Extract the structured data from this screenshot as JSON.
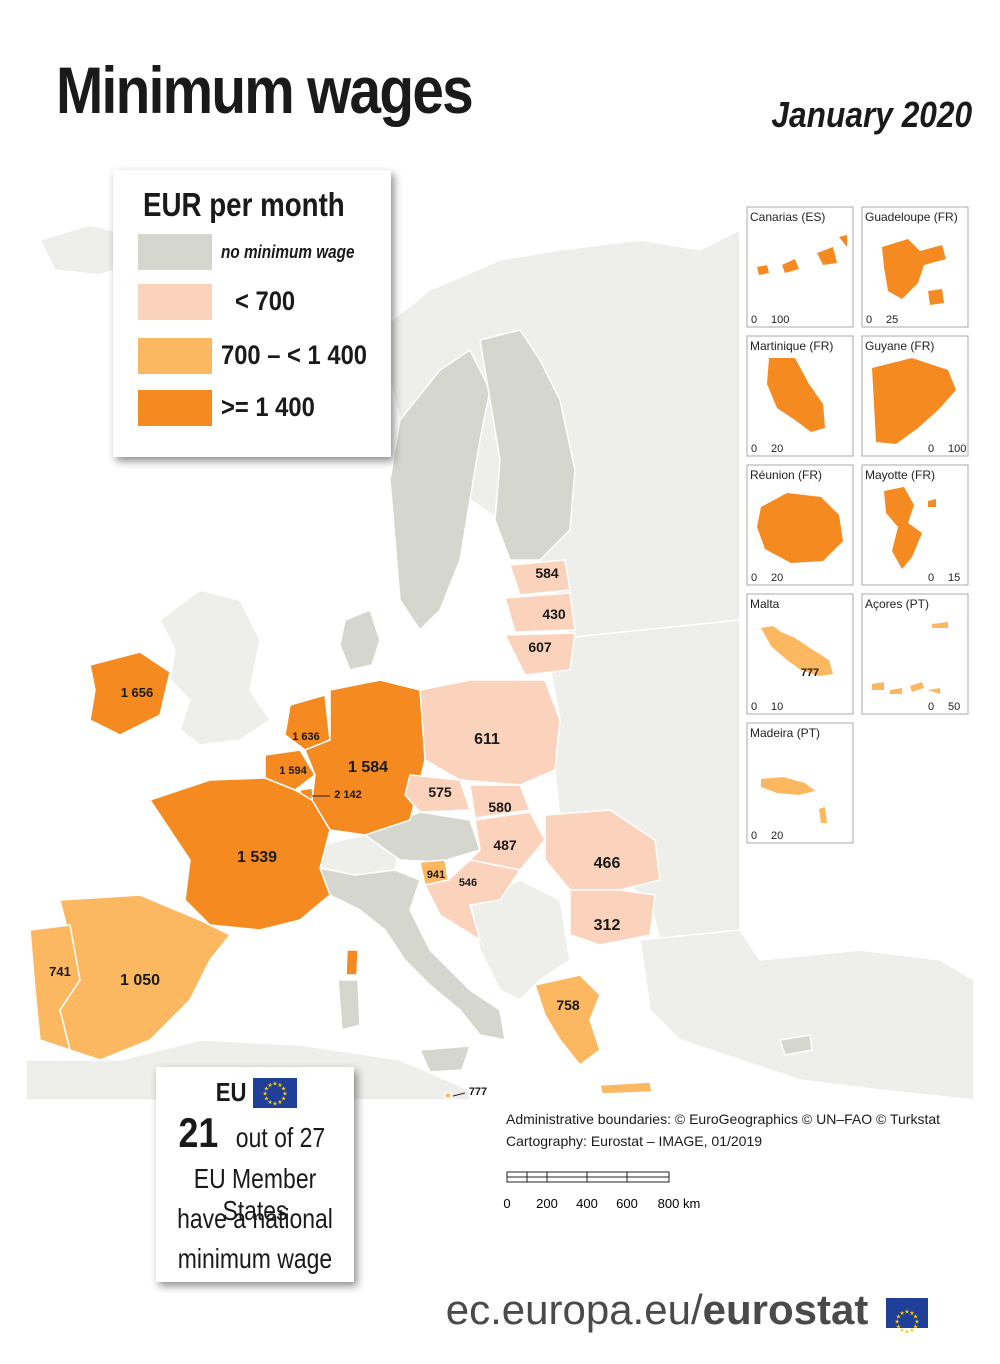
{
  "title": "Minimum wages",
  "date": "January 2020",
  "legend": {
    "title": "EUR per month",
    "items": [
      {
        "label": "no minimum wage",
        "color": "#d5d7ce"
      },
      {
        "label": "< 700",
        "color": "#fbd3bd"
      },
      {
        "label": "700 – < 1 400",
        "color": "#fbb860"
      },
      {
        "label": ">= 1 400",
        "color": "#f48a20"
      }
    ]
  },
  "colors": {
    "sea": "#ffffff",
    "non_eu": "#eeeeea",
    "border": "#ffffff"
  },
  "countries": [
    {
      "id": "lu",
      "name": "Luxembourg",
      "value": "2 142",
      "class": ">= 1 400"
    },
    {
      "id": "ie",
      "name": "Ireland",
      "value": "1 656",
      "class": ">= 1 400"
    },
    {
      "id": "nl",
      "name": "Netherlands",
      "value": "1 636",
      "class": ">= 1 400"
    },
    {
      "id": "be",
      "name": "Belgium",
      "value": "1 594",
      "class": ">= 1 400"
    },
    {
      "id": "de",
      "name": "Germany",
      "value": "1 584",
      "class": ">= 1 400"
    },
    {
      "id": "fr",
      "name": "France",
      "value": "1 539",
      "class": ">= 1 400"
    },
    {
      "id": "es",
      "name": "Spain",
      "value": "1 050",
      "class": "700 – < 1 400"
    },
    {
      "id": "si",
      "name": "Slovenia",
      "value": "941",
      "class": "700 – < 1 400"
    },
    {
      "id": "mt",
      "name": "Malta",
      "value": "777",
      "class": "700 – < 1 400"
    },
    {
      "id": "el",
      "name": "Greece",
      "value": "758",
      "class": "700 – < 1 400"
    },
    {
      "id": "pt",
      "name": "Portugal",
      "value": "741",
      "class": "700 – < 1 400"
    },
    {
      "id": "pl",
      "name": "Poland",
      "value": "611",
      "class": "< 700"
    },
    {
      "id": "lt",
      "name": "Lithuania",
      "value": "607",
      "class": "< 700"
    },
    {
      "id": "ee",
      "name": "Estonia",
      "value": "584",
      "class": "< 700"
    },
    {
      "id": "sk",
      "name": "Slovakia",
      "value": "580",
      "class": "< 700"
    },
    {
      "id": "cz",
      "name": "Czechia",
      "value": "575",
      "class": "< 700"
    },
    {
      "id": "hr",
      "name": "Croatia",
      "value": "546",
      "class": "< 700"
    },
    {
      "id": "hu",
      "name": "Hungary",
      "value": "487",
      "class": "< 700"
    },
    {
      "id": "ro",
      "name": "Romania",
      "value": "466",
      "class": "< 700"
    },
    {
      "id": "lv",
      "name": "Latvia",
      "value": "430",
      "class": "< 700"
    },
    {
      "id": "bg",
      "name": "Bulgaria",
      "value": "312",
      "class": "< 700"
    },
    {
      "id": "mt_main",
      "name": "Malta",
      "value": "777",
      "class": "700 – < 1 400"
    }
  ],
  "insets": [
    {
      "name": "Canarias (ES)",
      "scale_left": "0",
      "scale_right": "100"
    },
    {
      "name": "Guadeloupe (FR)",
      "scale_left": "0",
      "scale_right": "25"
    },
    {
      "name": "Martinique (FR)",
      "scale_left": "0",
      "scale_right": "20"
    },
    {
      "name": "Guyane (FR)",
      "scale_left": "0",
      "scale_right": "100"
    },
    {
      "name": "Réunion (FR)",
      "scale_left": "0",
      "scale_right": "20"
    },
    {
      "name": "Mayotte (FR)",
      "scale_left": "0",
      "scale_right": "15"
    },
    {
      "name": "Malta",
      "scale_left": "0",
      "scale_right": "10",
      "value": "777"
    },
    {
      "name": "Açores (PT)",
      "scale_left": "0",
      "scale_right": "50"
    },
    {
      "name": "Madeira (PT)",
      "scale_left": "0",
      "scale_right": "20"
    }
  ],
  "eu_box": {
    "tag": "EU",
    "count": "21",
    "out_of": "out of 27",
    "line2": "EU Member States",
    "line3": "have a national",
    "line4": "minimum wage"
  },
  "credits": {
    "line1": "Administrative boundaries: © EuroGeographics © UN–FAO © Turkstat",
    "line2": "Cartography: Eurostat – IMAGE, 01/2019"
  },
  "scale_bar": {
    "ticks": [
      "0",
      "200",
      "400",
      "600",
      "800 km"
    ]
  },
  "footer": {
    "prefix": "ec.europa.eu/",
    "brand": "eurostat"
  }
}
